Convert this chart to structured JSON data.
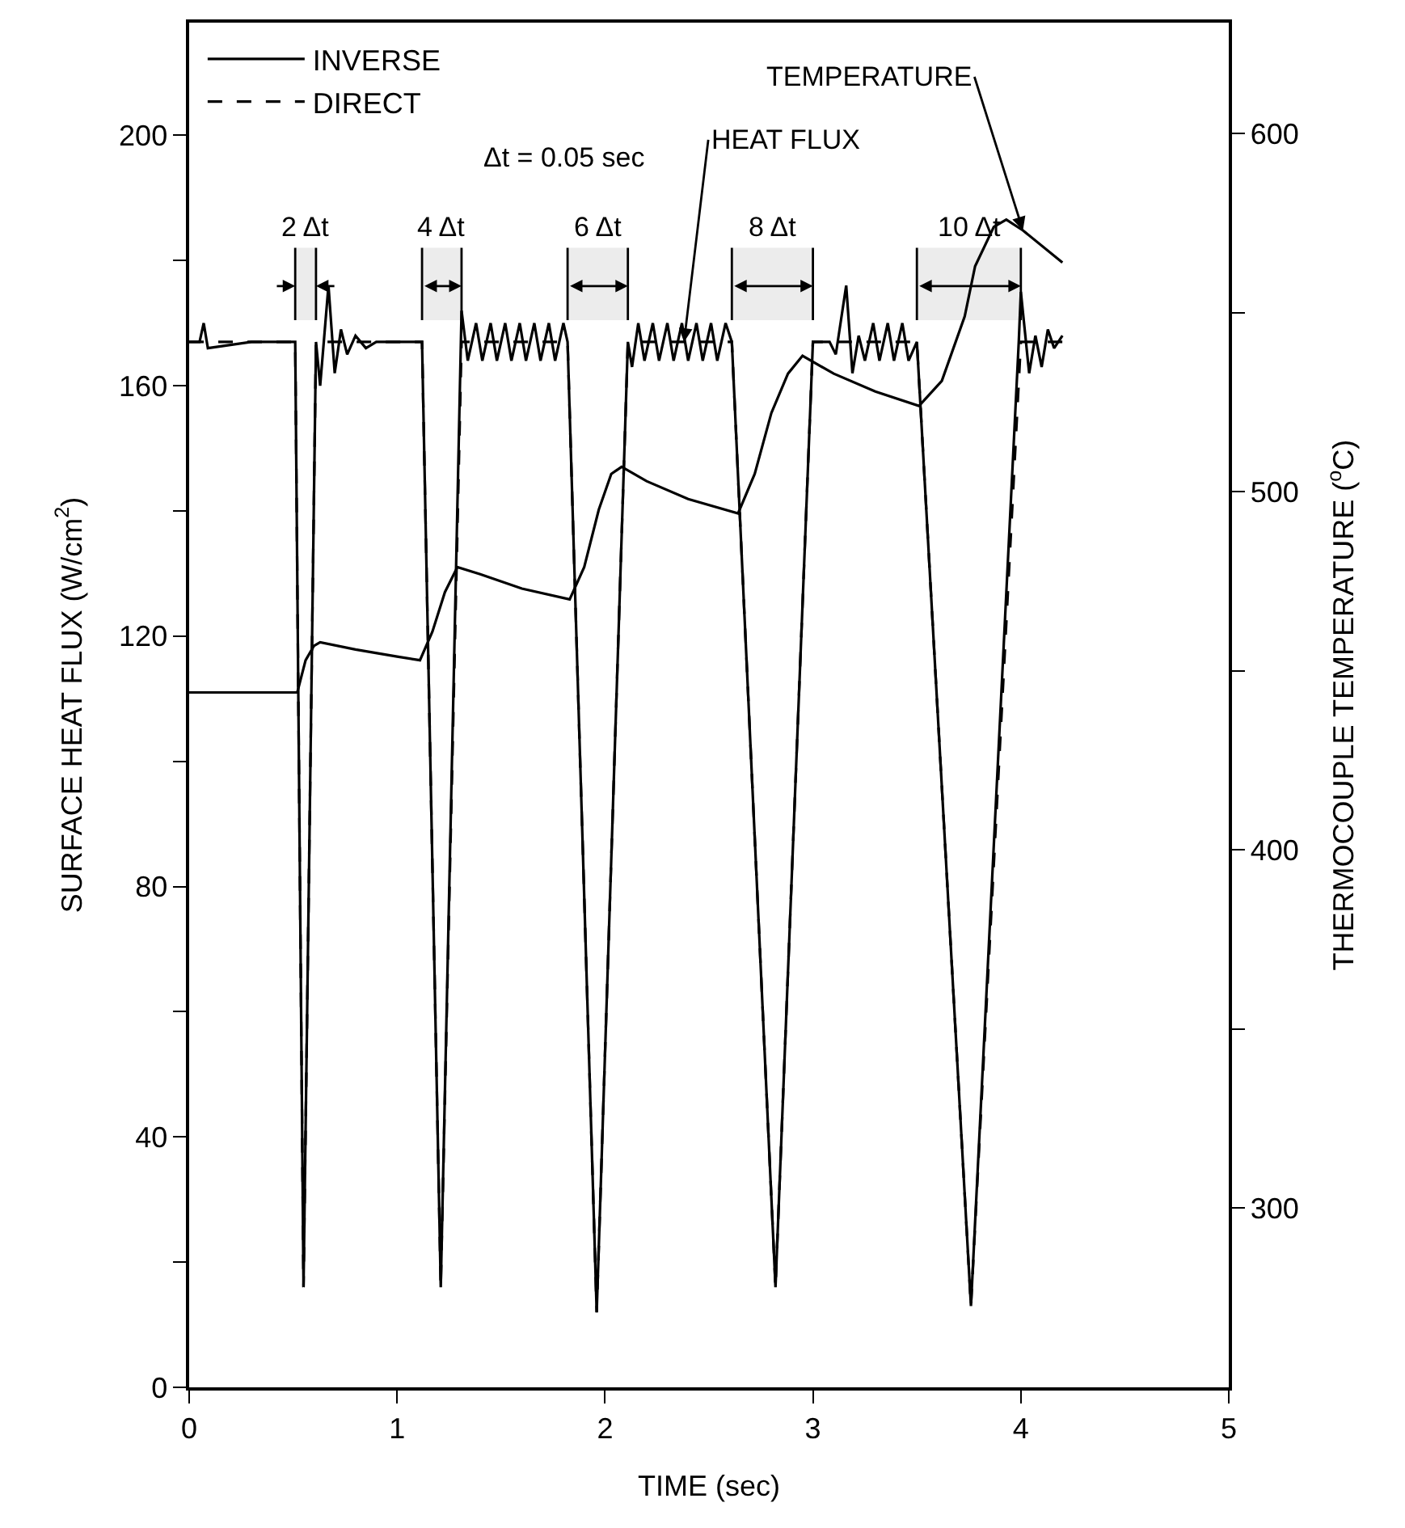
{
  "chart_data": {
    "type": "line",
    "xlabel": "TIME (sec)",
    "ylabel": "SURFACE HEAT FLUX (W/cm$^{2}$)",
    "y2label": "THERMOCOUPLE TEMPERATURE ($^{o}$C)",
    "xlim": [
      0,
      5
    ],
    "xticks": [
      0,
      1,
      2,
      3,
      4,
      5
    ],
    "ylim": [
      0,
      218
    ],
    "yticks": [
      0,
      {
        "value": 20,
        "label": null
      },
      40,
      {
        "value": 60,
        "label": null
      },
      80,
      {
        "value": 100,
        "label": null
      },
      120,
      {
        "value": 140,
        "label": null
      },
      160,
      {
        "value": 180,
        "label": null
      },
      200
    ],
    "y2lim": [
      250,
      631
    ],
    "y2ticks": [
      300,
      {
        "value": 350,
        "label": null
      },
      400,
      {
        "value": 450,
        "label": null
      },
      500,
      {
        "value": 550,
        "label": null
      },
      600
    ],
    "legend": "top left",
    "grid": false,
    "marker": "none",
    "series": [
      {
        "name": "INVERSE",
        "color": "#000000",
        "line_style": "solid",
        "x": [
          0,
          0.05,
          0.07,
          0.09,
          0.3,
          0.51,
          0.55,
          0.61,
          0.63,
          0.65,
          0.67,
          0.7,
          0.73,
          0.76,
          0.8,
          0.85,
          0.9,
          1.12,
          1.21,
          1.31,
          1.34,
          1.38,
          1.41,
          1.45,
          1.48,
          1.52,
          1.55,
          1.59,
          1.62,
          1.66,
          1.69,
          1.73,
          1.76,
          1.8,
          1.82,
          1.96,
          2.11,
          2.13,
          2.16,
          2.19,
          2.23,
          2.26,
          2.3,
          2.33,
          2.37,
          2.4,
          2.44,
          2.47,
          2.51,
          2.54,
          2.58,
          2.61,
          2.82,
          3.0,
          3.08,
          3.11,
          3.16,
          3.19,
          3.22,
          3.25,
          3.29,
          3.32,
          3.36,
          3.39,
          3.43,
          3.46,
          3.5,
          3.76,
          3.99,
          4.0,
          4.04,
          4.07,
          4.1,
          4.13,
          4.16,
          4.2
        ],
        "values": [
          167,
          167,
          170,
          166,
          167,
          167,
          16,
          167,
          160,
          168,
          176,
          162,
          169,
          165,
          168,
          166,
          167,
          167,
          16,
          172,
          164,
          170,
          164,
          170,
          164,
          170,
          164,
          170,
          164,
          170,
          164,
          170,
          164,
          170,
          167,
          12,
          167,
          163,
          170,
          164,
          170,
          164,
          170,
          164,
          170,
          164,
          170,
          164,
          170,
          164,
          170,
          167,
          16,
          167,
          167,
          165,
          176,
          162,
          168,
          164,
          170,
          164,
          170,
          164,
          170,
          164,
          167,
          13,
          167,
          175,
          162,
          168,
          163,
          169,
          166,
          168
        ]
      },
      {
        "name": "DIRECT",
        "color": "#000000",
        "line_style": "dashed",
        "x": [
          0,
          0.51,
          0.55,
          0.61,
          1.12,
          1.21,
          1.31,
          1.82,
          1.96,
          2.11,
          2.61,
          2.82,
          3.0,
          3.5,
          3.76,
          4.0,
          4.2
        ],
        "values": [
          167,
          167,
          16,
          167,
          167,
          16,
          167,
          167,
          12,
          167,
          167,
          16,
          167,
          167,
          13,
          167,
          167
        ]
      },
      {
        "name": "TEMPERATURE",
        "color": "#000000",
        "line_style": "solid",
        "axis": "y2",
        "x": [
          0,
          0.52,
          0.56,
          0.6,
          0.63,
          0.8,
          1.0,
          1.11,
          1.17,
          1.23,
          1.29,
          1.4,
          1.6,
          1.83,
          1.9,
          1.97,
          2.03,
          2.08,
          2.2,
          2.4,
          2.64,
          2.72,
          2.8,
          2.88,
          2.95,
          3.1,
          3.3,
          3.51,
          3.62,
          3.73,
          3.78,
          3.87,
          3.93,
          4.01,
          4.2
        ],
        "values": [
          444,
          444,
          453,
          457,
          458,
          456,
          454,
          453,
          461,
          472,
          479,
          477,
          473,
          470,
          479,
          495,
          505,
          507,
          503,
          498,
          494,
          505,
          522,
          533,
          538,
          533,
          528,
          524,
          531,
          549,
          563,
          574,
          576,
          573,
          564
        ]
      }
    ],
    "bands": [
      {
        "axis": "x",
        "from": 0.51,
        "to": 0.61,
        "label": "2 Δt",
        "color": "#ececec"
      },
      {
        "axis": "x",
        "from": 1.12,
        "to": 1.31,
        "label": "4 Δt",
        "color": "#ececec"
      },
      {
        "axis": "x",
        "from": 1.82,
        "to": 2.11,
        "label": "6 Δt",
        "color": "#ececec"
      },
      {
        "axis": "x",
        "from": 2.61,
        "to": 3.0,
        "label": "8 Δt",
        "color": "#ececec"
      },
      {
        "axis": "x",
        "from": 3.5,
        "to": 4.0,
        "label": "10 Δt",
        "color": "#ececec"
      }
    ],
    "annotations": [
      "Δt = 0.05 sec",
      {
        "text": "HEAT FLUX",
        "x": 2.38,
        "y": 167
      }
    ]
  }
}
